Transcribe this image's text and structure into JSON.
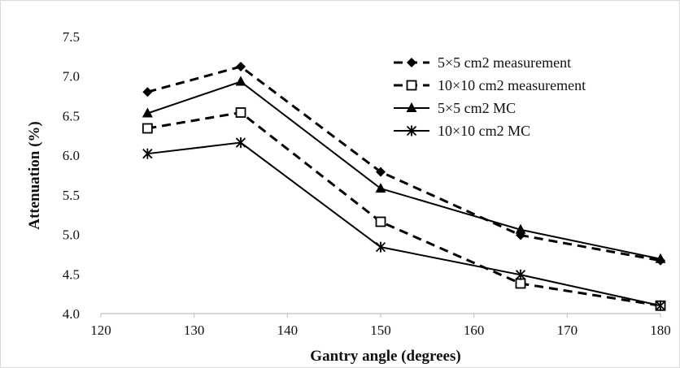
{
  "chart_data": {
    "type": "line",
    "xlabel": "Gantry angle (degrees)",
    "ylabel": "Attenuation (%)",
    "xlim": [
      120,
      180
    ],
    "ylim": [
      4.0,
      7.5
    ],
    "xticks": [
      120,
      130,
      140,
      150,
      160,
      170,
      180
    ],
    "yticks": [
      "4.0",
      "4.5",
      "5.0",
      "5.5",
      "6.0",
      "6.5",
      "7.0",
      "7.5"
    ],
    "grid": false,
    "legend_position": "top-right",
    "series": [
      {
        "name": "5×5 cm2 measurement",
        "marker": "diamond",
        "line": "dashed",
        "x": [
          125,
          135,
          150,
          165,
          180
        ],
        "y": [
          6.8,
          7.12,
          5.79,
          4.99,
          4.67
        ]
      },
      {
        "name": "10×10 cm2 measurement",
        "marker": "square-open",
        "line": "dashed",
        "x": [
          125,
          135,
          150,
          165,
          180
        ],
        "y": [
          6.34,
          6.54,
          5.16,
          4.38,
          4.1
        ]
      },
      {
        "name": "5×5 cm2 MC",
        "marker": "triangle",
        "line": "solid",
        "x": [
          125,
          135,
          150,
          165,
          180
        ],
        "y": [
          6.53,
          6.93,
          5.58,
          5.06,
          4.69
        ]
      },
      {
        "name": "10×10 cm2 MC",
        "marker": "asterisk",
        "line": "solid",
        "x": [
          125,
          135,
          150,
          165,
          180
        ],
        "y": [
          6.02,
          6.16,
          4.84,
          4.49,
          4.1
        ]
      }
    ]
  },
  "colors": {
    "line": "#000000",
    "axis": "#bfbfbf",
    "frame": "#d9d9d9"
  }
}
